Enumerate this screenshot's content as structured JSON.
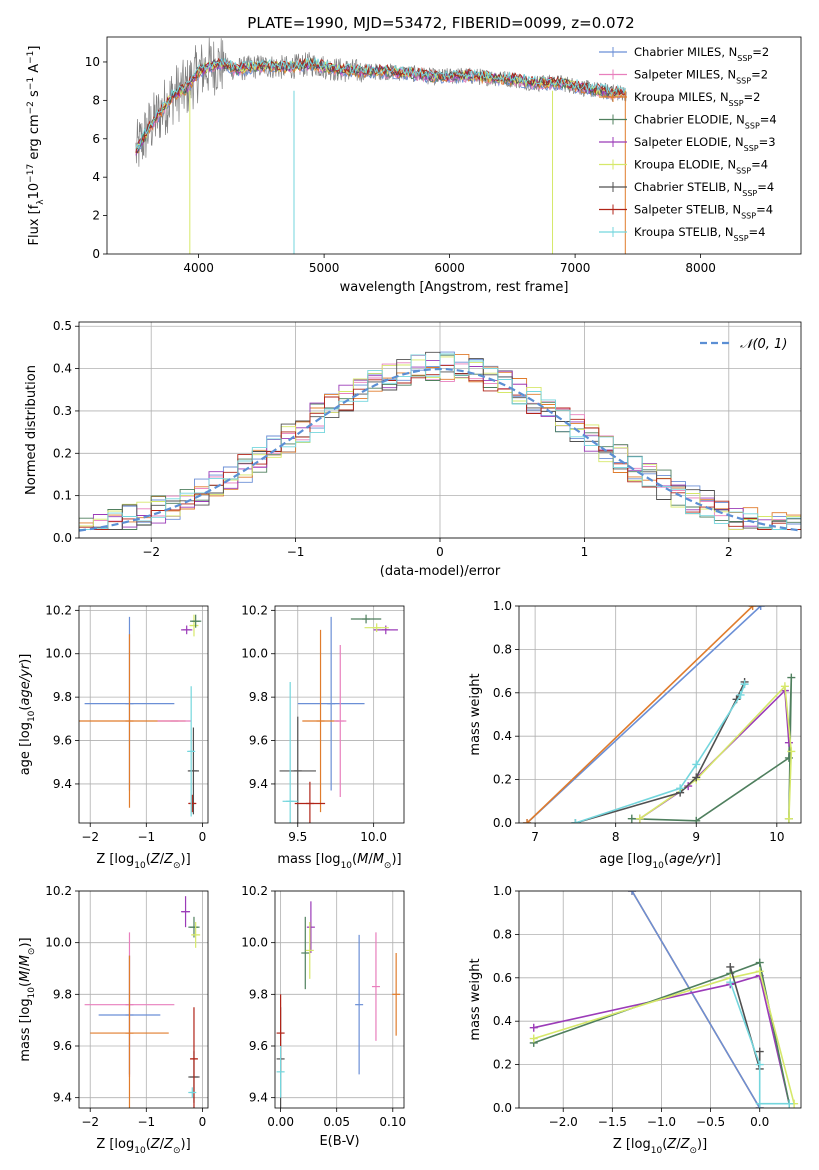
{
  "chart_data": [
    {
      "id": "spectrum",
      "type": "line",
      "title": "PLATE=1990, MJD=53472, FIBERID=0099, z=0.072",
      "xlabel": "wavelength [Angstrom, rest frame]",
      "ylabel": "Flux [f_λ 10^-17 erg cm^-2 s^-1 A^-1]",
      "xlim": [
        3270,
        8800
      ],
      "ylim": [
        0,
        11.3
      ],
      "xticks": [
        4000,
        5000,
        6000,
        7000,
        8000
      ],
      "yticks": [
        0,
        2,
        4,
        6,
        8,
        10
      ],
      "grid": false,
      "legend_position": "upper-right",
      "data_color": "#808080",
      "data_x_range": [
        3500,
        7410
      ],
      "model_color": "#74d6dd",
      "series": [
        {
          "label": "Chabrier MILES, N_SSP=2",
          "color": "#6b8fd6"
        },
        {
          "label": "Salpeter MILES, N_SSP=2",
          "color": "#e87fbd"
        },
        {
          "label": "Kroupa MILES, N_SSP=2",
          "color": "#e07c2c"
        },
        {
          "label": "Chabrier ELODIE, N_SSP=4",
          "color": "#4f7f5e"
        },
        {
          "label": "Salpeter ELODIE, N_SSP=3",
          "color": "#9b3bb8"
        },
        {
          "label": "Kroupa ELODIE, N_SSP=4",
          "color": "#d6e86a"
        },
        {
          "label": "Chabrier STELIB, N_SSP=4",
          "color": "#505050"
        },
        {
          "label": "Salpeter STELIB, N_SSP=4",
          "color": "#b02418"
        },
        {
          "label": "Kroupa STELIB, N_SSP=4",
          "color": "#74d6dd"
        }
      ],
      "continuum": {
        "x": [
          3500,
          3600,
          3700,
          3800,
          3900,
          4000,
          4100,
          4200,
          4300,
          4400,
          4500,
          4700,
          4900,
          5100,
          5300,
          5500,
          5700,
          5900,
          6100,
          6300,
          6500,
          6700,
          6900,
          7100,
          7300,
          7410
        ],
        "y": [
          5.3,
          6.5,
          7.4,
          8.3,
          8.6,
          9.5,
          9.8,
          9.9,
          9.6,
          9.7,
          9.8,
          9.7,
          9.9,
          9.6,
          9.5,
          9.5,
          9.4,
          9.2,
          9.3,
          9.2,
          9.1,
          8.9,
          8.9,
          8.6,
          8.4,
          8.4
        ]
      }
    },
    {
      "id": "residual-histogram",
      "type": "bar",
      "xlabel": "(data-model)/error",
      "ylabel": "Normed distribution",
      "xlim": [
        -2.5,
        2.5
      ],
      "ylim": [
        0,
        0.51
      ],
      "xticks": [
        -2,
        -1,
        0,
        1,
        2
      ],
      "yticks": [
        0.0,
        0.1,
        0.2,
        0.3,
        0.4,
        0.5
      ],
      "grid": true,
      "legend_position": "upper-right",
      "gaussian_label": "𝒩(0, 1)",
      "gaussian_color": "#5b8fd4"
    },
    {
      "id": "age-vs-Z",
      "type": "scatter",
      "xlabel": "Z [log10(Z/Z⊙)]",
      "ylabel": "age [log10(age/yr)]",
      "xlim": [
        -2.2,
        0.1
      ],
      "ylim": [
        9.22,
        10.22
      ],
      "xticks": [
        -2,
        -1,
        0
      ],
      "yticks": [
        9.4,
        9.6,
        9.8,
        10.0,
        10.2
      ],
      "grid": true,
      "points": [
        {
          "color": "#6b8fd6",
          "x": -1.3,
          "y": 9.77,
          "dx": 0.8,
          "dy": 0.4
        },
        {
          "color": "#e07c2c",
          "x": -1.3,
          "y": 9.69,
          "dx": 1.0,
          "dy": 0.4
        },
        {
          "color": "#e87fbd",
          "x": -0.5,
          "y": 9.69,
          "dx": 0.3,
          "dy": 0.0
        },
        {
          "color": "#9b3bb8",
          "x": -0.28,
          "y": 10.11,
          "dx": 0.1,
          "dy": 0.02
        },
        {
          "color": "#d6e86a",
          "x": -0.15,
          "y": 10.13,
          "dx": 0.08,
          "dy": 0.05
        },
        {
          "color": "#4f7f5e",
          "x": -0.12,
          "y": 10.15,
          "dx": 0.1,
          "dy": 0.03
        },
        {
          "color": "#505050",
          "x": -0.16,
          "y": 9.46,
          "dx": 0.1,
          "dy": 0.2
        },
        {
          "color": "#b02418",
          "x": -0.18,
          "y": 9.31,
          "dx": 0.06,
          "dy": 0.04
        },
        {
          "color": "#74d6dd",
          "x": -0.2,
          "y": 9.55,
          "dx": 0.05,
          "dy": 0.3
        }
      ]
    },
    {
      "id": "age-vs-mass",
      "type": "scatter",
      "xlabel": "mass [log10(M/M⊙)]",
      "ylabel": "",
      "xlim": [
        9.35,
        10.2
      ],
      "ylim": [
        9.22,
        10.22
      ],
      "xticks": [
        9.5,
        10.0
      ],
      "yticks": [
        9.4,
        9.6,
        9.8,
        10.0,
        10.2
      ],
      "grid": true,
      "points": [
        {
          "color": "#6b8fd6",
          "x": 9.72,
          "y": 9.77,
          "dx": 0.22,
          "dy": 0.4
        },
        {
          "color": "#e07c2c",
          "x": 9.65,
          "y": 9.69,
          "dx": 0.12,
          "dy": 0.42
        },
        {
          "color": "#e87fbd",
          "x": 9.78,
          "y": 9.69,
          "dx": 0.04,
          "dy": 0.35
        },
        {
          "color": "#505050",
          "x": 9.5,
          "y": 9.46,
          "dx": 0.12,
          "dy": 0.25
        },
        {
          "color": "#b02418",
          "x": 9.58,
          "y": 9.31,
          "dx": 0.1,
          "dy": 0.1
        },
        {
          "color": "#74d6dd",
          "x": 9.45,
          "y": 9.32,
          "dx": 0.05,
          "dy": 0.55
        },
        {
          "color": "#4f7f5e",
          "x": 9.95,
          "y": 10.16,
          "dx": 0.1,
          "dy": 0.02
        },
        {
          "color": "#9b3bb8",
          "x": 10.08,
          "y": 10.11,
          "dx": 0.08,
          "dy": 0.02
        },
        {
          "color": "#d6e86a",
          "x": 10.02,
          "y": 10.12,
          "dx": 0.08,
          "dy": 0.02
        }
      ]
    },
    {
      "id": "mass-weight-vs-age",
      "type": "line",
      "xlabel": "age [log10(age/yr)]",
      "ylabel": "mass weight",
      "xlim": [
        6.8,
        10.3
      ],
      "ylim": [
        0,
        1.0
      ],
      "xticks": [
        7,
        8,
        9,
        10
      ],
      "yticks": [
        0.0,
        0.2,
        0.4,
        0.6,
        0.8,
        1.0
      ],
      "grid": true,
      "series": [
        {
          "color": "#6b8fd6",
          "x": [
            6.9,
            9.8
          ],
          "y": [
            0.0,
            1.0
          ]
        },
        {
          "color": "#e07c2c",
          "x": [
            6.9,
            9.7
          ],
          "y": [
            0.0,
            1.0
          ]
        },
        {
          "color": "#4f7f5e",
          "x": [
            8.2,
            9.0,
            10.15,
            10.18,
            10.15
          ],
          "y": [
            0.02,
            0.01,
            0.3,
            0.67,
            0.02
          ]
        },
        {
          "color": "#9b3bb8",
          "x": [
            8.3,
            8.9,
            10.1,
            10.15
          ],
          "y": [
            0.02,
            0.17,
            0.61,
            0.37
          ]
        },
        {
          "color": "#d6e86a",
          "x": [
            8.3,
            9.0,
            10.1,
            10.18,
            10.15
          ],
          "y": [
            0.02,
            0.2,
            0.63,
            0.33,
            0.02
          ]
        },
        {
          "color": "#505050",
          "x": [
            7.5,
            8.8,
            9.0,
            9.5,
            9.6
          ],
          "y": [
            0.0,
            0.14,
            0.21,
            0.57,
            0.65
          ]
        },
        {
          "color": "#74d6dd",
          "x": [
            7.5,
            8.8,
            9.0,
            9.55,
            9.6
          ],
          "y": [
            0.0,
            0.16,
            0.27,
            0.59,
            0.64
          ]
        }
      ]
    },
    {
      "id": "mass-vs-Z",
      "type": "scatter",
      "xlabel": "Z [log10(Z/Z⊙)]",
      "ylabel": "mass [log10(M/M⊙)]",
      "xlim": [
        -2.2,
        0.1
      ],
      "ylim": [
        9.36,
        10.2
      ],
      "xticks": [
        -2,
        -1,
        0
      ],
      "yticks": [
        9.4,
        9.6,
        9.8,
        10.0,
        10.2
      ],
      "grid": true,
      "points": [
        {
          "color": "#e87fbd",
          "x": -1.3,
          "y": 9.76,
          "dx": 0.8,
          "dy": 0.28
        },
        {
          "color": "#6b8fd6",
          "x": -1.3,
          "y": 9.72,
          "dx": 0.55,
          "dy": 0.23
        },
        {
          "color": "#e07c2c",
          "x": -1.3,
          "y": 9.65,
          "dx": 0.7,
          "dy": 0.3
        },
        {
          "color": "#9b3bb8",
          "x": -0.3,
          "y": 10.12,
          "dx": 0.08,
          "dy": 0.06
        },
        {
          "color": "#4f7f5e",
          "x": -0.15,
          "y": 10.06,
          "dx": 0.1,
          "dy": 0.04
        },
        {
          "color": "#d6e86a",
          "x": -0.12,
          "y": 10.03,
          "dx": 0.08,
          "dy": 0.05
        },
        {
          "color": "#505050",
          "x": -0.15,
          "y": 9.48,
          "dx": 0.1,
          "dy": 0.1
        },
        {
          "color": "#b02418",
          "x": -0.15,
          "y": 9.55,
          "dx": 0.06,
          "dy": 0.2
        },
        {
          "color": "#74d6dd",
          "x": -0.18,
          "y": 9.42,
          "dx": 0.05,
          "dy": 0.02
        }
      ]
    },
    {
      "id": "mass-vs-EBV",
      "type": "scatter",
      "xlabel": "E(B-V)",
      "ylabel": "",
      "xlim": [
        -0.005,
        0.11
      ],
      "ylim": [
        9.36,
        10.2
      ],
      "xticks": [
        0.0,
        0.05,
        0.1
      ],
      "xtick_labels": [
        "0.00",
        "0.05",
        "0.10"
      ],
      "yticks": [
        9.4,
        9.6,
        9.8,
        10.0,
        10.2
      ],
      "grid": true,
      "points": [
        {
          "color": "#505050",
          "x": 0.0,
          "y": 9.55,
          "dy": 0.2
        },
        {
          "color": "#b02418",
          "x": 0.0,
          "y": 9.65,
          "dy": 0.15
        },
        {
          "color": "#74d6dd",
          "x": 0.0,
          "y": 9.5,
          "dy": 0.1
        },
        {
          "color": "#4f7f5e",
          "x": 0.022,
          "y": 9.96,
          "dy": 0.14
        },
        {
          "color": "#9b3bb8",
          "x": 0.027,
          "y": 10.06,
          "dy": 0.1
        },
        {
          "color": "#d6e86a",
          "x": 0.026,
          "y": 9.97,
          "dy": 0.11
        },
        {
          "color": "#6b8fd6",
          "x": 0.07,
          "y": 9.76,
          "dy": 0.27
        },
        {
          "color": "#e87fbd",
          "x": 0.085,
          "y": 9.83,
          "dy": 0.21
        },
        {
          "color": "#e07c2c",
          "x": 0.103,
          "y": 9.8,
          "dy": 0.16
        }
      ]
    },
    {
      "id": "mass-weight-vs-Z",
      "type": "line",
      "xlabel": "Z [log10(Z/Z⊙)]",
      "ylabel": "mass weight",
      "xlim": [
        -2.45,
        0.42
      ],
      "ylim": [
        0,
        1.0
      ],
      "xticks": [
        -2.0,
        -1.5,
        -1.0,
        -0.5,
        0.0
      ],
      "xtick_labels": [
        "−2.0",
        "−1.5",
        "−1.0",
        "−0.5",
        "0.0"
      ],
      "yticks": [
        0.0,
        0.2,
        0.4,
        0.6,
        0.8,
        1.0
      ],
      "grid": true,
      "series": [
        {
          "color": "#e07c2c",
          "x": [
            -1.3,
            0.0
          ],
          "y": [
            1.0,
            0.0
          ]
        },
        {
          "color": "#6b8fd6",
          "x": [
            -1.3,
            0.0
          ],
          "y": [
            1.0,
            0.0
          ]
        },
        {
          "color": "#9b3bb8",
          "x": [
            -2.3,
            -0.3,
            0.0,
            0.3
          ],
          "y": [
            0.37,
            0.57,
            0.61,
            0.02
          ]
        },
        {
          "color": "#4f7f5e",
          "x": [
            -2.3,
            -0.3,
            0.0,
            0.3
          ],
          "y": [
            0.3,
            0.62,
            0.67,
            0.02
          ]
        },
        {
          "color": "#d6e86a",
          "x": [
            -2.3,
            -0.3,
            0.0,
            0.35
          ],
          "y": [
            0.32,
            0.6,
            0.63,
            0.02
          ]
        },
        {
          "color": "#505050",
          "x": [
            -0.3,
            0.0,
            0.0
          ],
          "y": [
            0.65,
            0.18,
            0.26
          ]
        },
        {
          "color": "#74d6dd",
          "x": [
            -0.3,
            0.0,
            0.0,
            0.3
          ],
          "y": [
            0.58,
            0.2,
            0.02,
            0.02
          ]
        }
      ]
    }
  ]
}
